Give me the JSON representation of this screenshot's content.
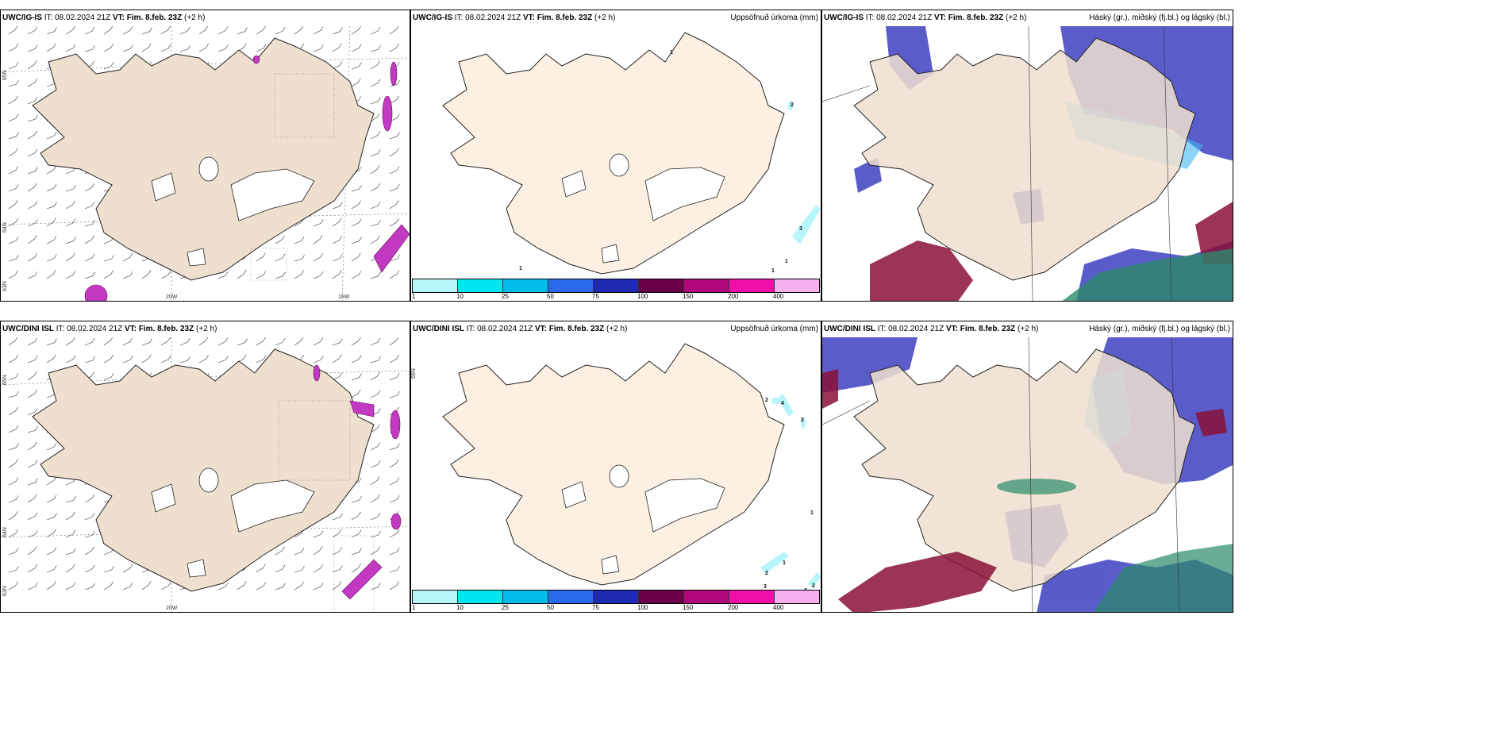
{
  "colors": {
    "land": "#eedfcf",
    "land_light": "#fcf0e2",
    "sea": "#ffffff",
    "precip_purple": "#c23ac2",
    "blue_high": "#3d3fc0",
    "blue_light": "#3fb8f0",
    "red_low": "#8a1038",
    "green_low": "#2a8a6a"
  },
  "panels": [
    {
      "model": "UWC/IG-IS",
      "it_label": "IT:",
      "it_value": "08.02.2024 21Z",
      "vt_label": "VT:",
      "vt_value": "Fim. 8.feb. 23Z",
      "offset": "(+2 h)",
      "right_title": "",
      "lat_labels": [
        "65N",
        "64N",
        "63N"
      ],
      "lon_labels": [
        "20W",
        "15W"
      ],
      "numbers": []
    },
    {
      "model": "UWC/IG-IS",
      "it_label": "IT:",
      "it_value": "08.02.2024 21Z",
      "vt_label": "VT:",
      "vt_value": "Fim. 8.feb. 23Z",
      "offset": "(+2 h)",
      "right_title": "Uppsöfnuð úrkoma (mm)",
      "lat_labels": [],
      "lon_labels": [],
      "numbers": [
        "1",
        "2",
        "3",
        "1",
        "1",
        "1"
      ]
    },
    {
      "model": "UWC/IG-IS",
      "it_label": "IT:",
      "it_value": "08.02.2024 21Z",
      "vt_label": "VT:",
      "vt_value": "Fim. 8.feb. 23Z",
      "offset": "(+2 h)",
      "right_title": "Háský (gr.), miðský (fj.bl.) og lágský (bl.)",
      "lat_labels": [],
      "lon_labels": [],
      "numbers": []
    },
    {
      "model": "UWC/DINI ISL",
      "it_label": "IT:",
      "it_value": "08.02.2024 21Z",
      "vt_label": "VT:",
      "vt_value": "Fim. 8.feb. 23Z",
      "offset": "(+2 h)",
      "right_title": "",
      "lat_labels": [
        "65N",
        "64N",
        "63N"
      ],
      "lon_labels": [
        "20W"
      ],
      "numbers": []
    },
    {
      "model": "UWC/DINI ISL",
      "it_label": "IT:",
      "it_value": "08.02.2024 21Z",
      "vt_label": "VT:",
      "vt_value": "Fim. 8.feb. 23Z",
      "offset": "(+2 h)",
      "right_title": "Uppsöfnuð úrkoma (mm)",
      "lat_labels": [
        "65N"
      ],
      "lon_labels": [],
      "numbers": [
        "2",
        "4",
        "2",
        "1",
        "1",
        "2",
        "3",
        "2",
        "2"
      ]
    },
    {
      "model": "UWC/DINI ISL",
      "it_label": "IT:",
      "it_value": "08.02.2024 21Z",
      "vt_label": "VT:",
      "vt_value": "Fim. 8.feb. 23Z",
      "offset": "(+2 h)",
      "right_title": "Háský (gr.), miðský (fj.bl.) og lágský (bl.)",
      "lat_labels": [],
      "lon_labels": [],
      "numbers": []
    }
  ],
  "colorbar": {
    "levels": [
      "1",
      "10",
      "25",
      "50",
      "75",
      "100",
      "150",
      "200",
      "400"
    ],
    "colors": [
      "#b6f6fa",
      "#00e6f0",
      "#00bce8",
      "#2a6ae8",
      "#1e2ab4",
      "#6a0048",
      "#b0087a",
      "#f010a8",
      "#f6b0f0"
    ]
  }
}
